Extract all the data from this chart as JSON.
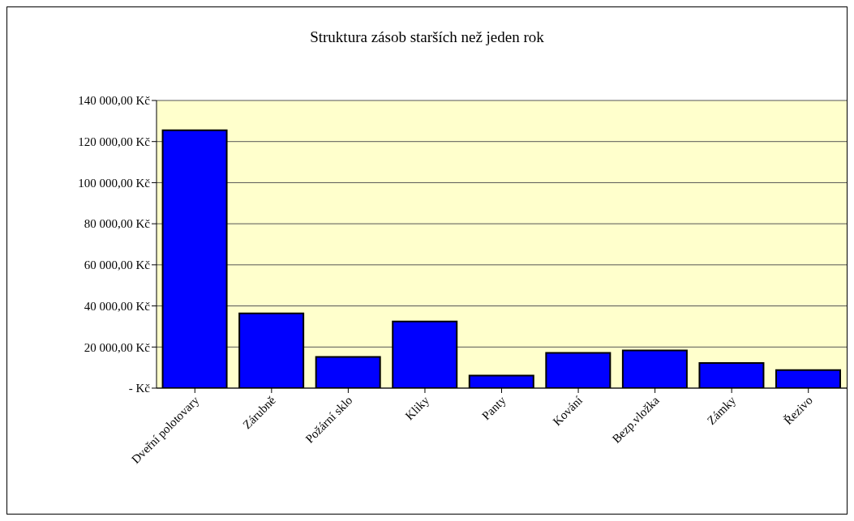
{
  "chart_data": {
    "type": "bar",
    "title": "Struktura zásob starších než jeden rok",
    "categories": [
      "Dveřní polotovary",
      "Zárubně",
      "Požární sklo",
      "Kliky",
      "Panty",
      "Kování",
      "Bezp.vložka",
      "Zámky",
      "Řezivo"
    ],
    "values": [
      125500,
      36400,
      15200,
      32400,
      6100,
      17200,
      18300,
      12200,
      8800
    ],
    "color": "#0000ff",
    "ylim": [
      0,
      140000
    ],
    "yticks": [
      {
        "value": 0,
        "label": "-     Kč"
      },
      {
        "value": 20000,
        "label": "20 000,00 Kč"
      },
      {
        "value": 40000,
        "label": "40 000,00 Kč"
      },
      {
        "value": 60000,
        "label": "60 000,00 Kč"
      },
      {
        "value": 80000,
        "label": "80 000,00 Kč"
      },
      {
        "value": 100000,
        "label": "100 000,00 Kč"
      },
      {
        "value": 120000,
        "label": "120 000,00 Kč"
      },
      {
        "value": 140000,
        "label": "140 000,00 Kč"
      }
    ],
    "grid": "y"
  }
}
